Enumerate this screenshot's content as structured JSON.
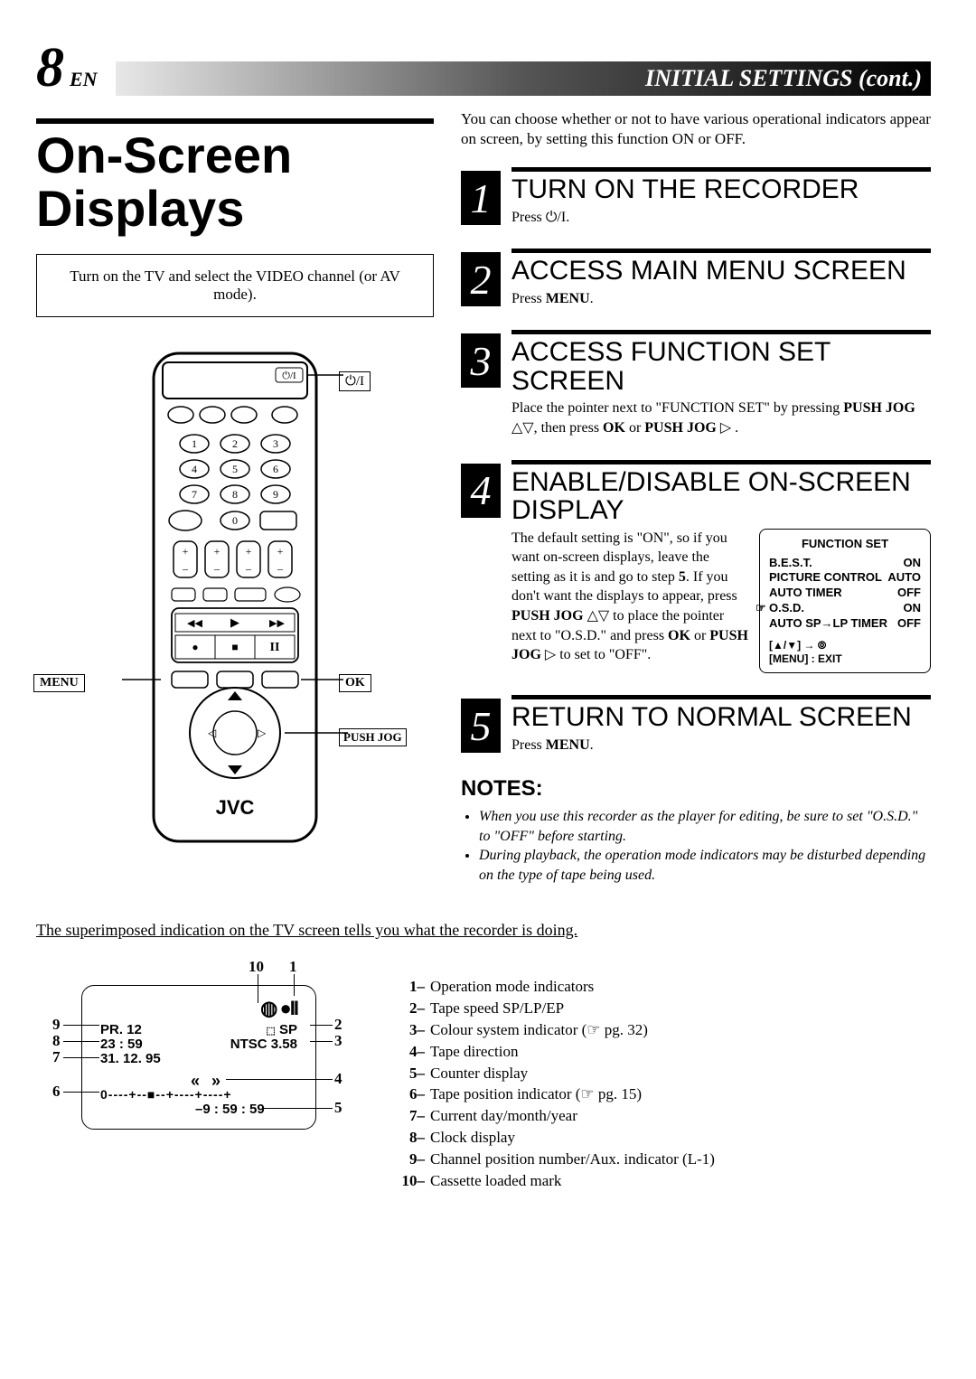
{
  "page_number": "8",
  "page_lang": "EN",
  "header_right": "INITIAL SETTINGS (cont.)",
  "main_title_1": "On-Screen",
  "main_title_2": "Displays",
  "tv_instruction": "Turn on the TV and select the VIDEO channel (or AV mode).",
  "intro": "You can choose whether or not to have various operational indicators appear on screen, by setting this function ON or OFF.",
  "steps": [
    {
      "num": "1",
      "title": "TURN ON THE RECORDER",
      "body": "Press ⏻/I."
    },
    {
      "num": "2",
      "title": "ACCESS MAIN MENU SCREEN",
      "body": "Press <b>MENU</b>."
    },
    {
      "num": "3",
      "title": "ACCESS FUNCTION SET SCREEN",
      "body": "Place the pointer next to \"FUNCTION SET\" by pressing <b>PUSH JOG</b> △▽, then press <b>OK</b> or <b>PUSH JOG</b> ▷ ."
    },
    {
      "num": "4",
      "title": "ENABLE/DISABLE ON-SCREEN DISPLAY",
      "body": "The default setting is \"ON\", so if you want on-screen displays, leave the setting as it is and go to step <b>5</b>. If you don't want the displays to appear, press <b>PUSH JOG</b> △▽ to place the pointer next to \"O.S.D.\" and press <b>OK</b> or <b>PUSH JOG</b> ▷ to set to \"OFF\"."
    },
    {
      "num": "5",
      "title": "RETURN TO NORMAL SCREEN",
      "body": "Press <b>MENU</b>."
    }
  ],
  "function_set": {
    "title": "FUNCTION SET",
    "rows": [
      {
        "label": "B.E.S.T.",
        "val": "ON"
      },
      {
        "label": "PICTURE CONTROL",
        "val": "AUTO"
      },
      {
        "label": "AUTO TIMER",
        "val": "OFF"
      },
      {
        "label": "O.S.D.",
        "val": "ON",
        "pointer": true
      },
      {
        "label": "AUTO SP→LP TIMER",
        "val": "OFF"
      }
    ],
    "footer1": "[▲/▼] → ⦾",
    "footer2": "[MENU] : EXIT"
  },
  "notes_title": "NOTES:",
  "notes": [
    "When you use this recorder as the player for editing, be sure to set \"O.S.D.\" to  \"OFF\" before starting.",
    "During playback, the operation mode indicators may be disturbed depending on the type of tape being used."
  ],
  "superimposed_title": "The superimposed indication on the TV screen tells you what the recorder is doing.",
  "osd": {
    "pr": "PR. 12",
    "clock": "23 : 59",
    "date": "31. 12. 95",
    "sp": "SP",
    "ntsc": "NTSC 3.58",
    "dir": "« »",
    "bar": "0----+--■--+----+----+",
    "counter": "–9 : 59 : 59",
    "icons": "◍ ●II"
  },
  "legend": [
    {
      "n": "1",
      "t": "Operation mode indicators"
    },
    {
      "n": "2",
      "t": "Tape speed SP/LP/EP"
    },
    {
      "n": "3",
      "t": "Colour system indicator (☞ pg. 32)"
    },
    {
      "n": "4",
      "t": "Tape direction"
    },
    {
      "n": "5",
      "t": "Counter display"
    },
    {
      "n": "6",
      "t": "Tape position indicator (☞ pg. 15)"
    },
    {
      "n": "7",
      "t": "Current day/month/year"
    },
    {
      "n": "8",
      "t": "Clock display"
    },
    {
      "n": "9",
      "t": "Channel position number/Aux. indicator (L-1)"
    },
    {
      "n": "10",
      "t": "Cassette loaded mark"
    }
  ],
  "remote_labels": {
    "power": "⏻/I",
    "menu": "MENU",
    "ok": "OK",
    "pushjog": "PUSH JOG",
    "brand": "JVC"
  }
}
